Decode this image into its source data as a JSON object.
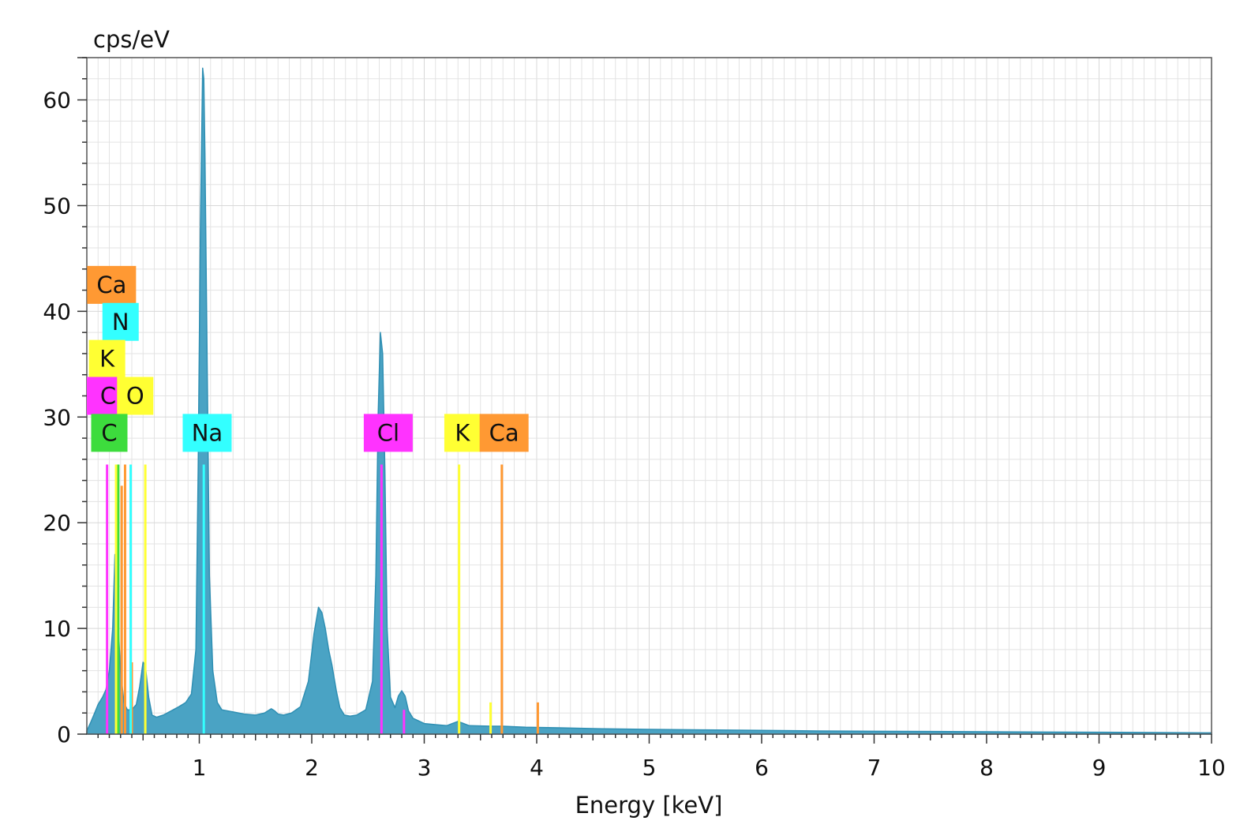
{
  "chart_data": {
    "type": "area",
    "title": "",
    "xlabel": "Energy [keV]",
    "ylabel": "cps/eV",
    "xlim": [
      0.0,
      10.0
    ],
    "ylim": [
      0,
      64
    ],
    "x_ticks": [
      1,
      2,
      3,
      4,
      5,
      6,
      7,
      8,
      9,
      10
    ],
    "y_ticks": [
      0,
      10,
      20,
      30,
      40,
      50,
      60
    ],
    "grid": true,
    "colors": {
      "spectrum_fill": "#4aa3c4",
      "spectrum_line": "#2f8fb3",
      "grid": "#e3e3e3",
      "C": "#3ddc3d",
      "Cl": "#ff33ff",
      "K": "#ffff33",
      "Ca": "#ff9933",
      "N": "#33ffff",
      "O": "#ffff33",
      "Na": "#33ffff"
    },
    "series": [
      {
        "x": [
          0.0,
          0.03,
          0.07,
          0.1,
          0.14,
          0.17,
          0.2,
          0.23,
          0.25,
          0.27,
          0.3,
          0.33,
          0.36,
          0.4,
          0.44,
          0.47,
          0.5,
          0.52,
          0.55,
          0.58,
          0.62,
          0.68,
          0.75,
          0.82,
          0.88,
          0.93,
          0.97,
          0.99,
          1.01,
          1.03,
          1.04,
          1.05,
          1.07,
          1.09,
          1.12,
          1.16,
          1.2,
          1.3,
          1.4,
          1.5,
          1.58,
          1.64,
          1.67,
          1.7,
          1.75,
          1.82,
          1.9,
          1.97,
          2.02,
          2.06,
          2.09,
          2.12,
          2.15,
          2.18,
          2.22,
          2.25,
          2.29,
          2.34,
          2.4,
          2.48,
          2.54,
          2.57,
          2.59,
          2.61,
          2.63,
          2.65,
          2.67,
          2.7,
          2.74,
          2.77,
          2.8,
          2.83,
          2.86,
          2.9,
          3.0,
          3.1,
          3.2,
          3.25,
          3.3,
          3.35,
          3.4,
          3.6,
          3.7,
          3.9,
          4.2,
          4.6,
          5.0,
          5.5,
          6.0,
          6.5,
          7.0,
          7.5,
          8.0,
          8.5,
          9.0,
          9.5,
          10.0
        ],
        "y": [
          0.3,
          1.0,
          2.0,
          2.8,
          3.5,
          4.2,
          6.0,
          10.0,
          17.0,
          12.0,
          6.0,
          3.0,
          2.3,
          2.3,
          2.8,
          4.5,
          6.8,
          6.5,
          3.5,
          1.8,
          1.6,
          1.8,
          2.2,
          2.6,
          3.0,
          3.8,
          8.0,
          25.0,
          48.0,
          63.0,
          62.0,
          55.0,
          35.0,
          15.0,
          6.0,
          3.0,
          2.3,
          2.1,
          1.9,
          1.8,
          2.0,
          2.4,
          2.2,
          1.9,
          1.8,
          2.0,
          2.6,
          5.0,
          9.5,
          12.0,
          11.5,
          10.0,
          8.0,
          6.5,
          4.0,
          2.5,
          1.8,
          1.7,
          1.8,
          2.3,
          5.0,
          15.0,
          30.0,
          38.0,
          36.0,
          25.0,
          10.0,
          3.5,
          2.5,
          3.6,
          4.1,
          3.6,
          2.2,
          1.5,
          1.0,
          0.9,
          0.8,
          1.0,
          1.2,
          1.0,
          0.8,
          0.75,
          0.75,
          0.65,
          0.6,
          0.5,
          0.45,
          0.4,
          0.35,
          0.3,
          0.27,
          0.25,
          0.22,
          0.2,
          0.18,
          0.15,
          0.12
        ]
      }
    ],
    "element_markers": [
      {
        "element": "C",
        "lines": [
          {
            "x": 0.28,
            "height": 25.5
          }
        ]
      },
      {
        "element": "Cl",
        "lines": [
          {
            "x": 0.18,
            "height": 25.5
          },
          {
            "x": 2.62,
            "height": 25.5
          },
          {
            "x": 2.82,
            "height": 2.3
          }
        ]
      },
      {
        "element": "K",
        "lines": [
          {
            "x": 0.26,
            "height": 25.5
          },
          {
            "x": 3.31,
            "height": 25.5
          },
          {
            "x": 3.59,
            "height": 3.0
          }
        ]
      },
      {
        "element": "Ca",
        "lines": [
          {
            "x": 0.34,
            "height": 25.5
          },
          {
            "x": 0.31,
            "height": 23.5
          },
          {
            "x": 0.4,
            "height": 6.8
          },
          {
            "x": 3.69,
            "height": 25.5
          },
          {
            "x": 4.01,
            "height": 3.0
          }
        ]
      },
      {
        "element": "N",
        "lines": [
          {
            "x": 0.39,
            "height": 25.5
          }
        ]
      },
      {
        "element": "O",
        "lines": [
          {
            "x": 0.52,
            "height": 25.5
          }
        ]
      },
      {
        "element": "Na",
        "lines": [
          {
            "x": 1.04,
            "height": 25.5
          }
        ]
      }
    ],
    "labels": [
      {
        "text": "Ca",
        "element": "Ca",
        "x": 0.22,
        "y": 42.5
      },
      {
        "text": "N",
        "element": "N",
        "x": 0.3,
        "y": 39.0
      },
      {
        "text": "K",
        "element": "K",
        "x": 0.18,
        "y": 35.5
      },
      {
        "text": "Cl",
        "element": "Cl",
        "x": 0.13,
        "y": 32.0
      },
      {
        "text": "O",
        "element": "O",
        "x": 0.43,
        "y": 32.0
      },
      {
        "text": "C",
        "element": "C",
        "x": 0.2,
        "y": 28.5
      },
      {
        "text": "Na",
        "element": "Na",
        "x": 1.07,
        "y": 28.5
      },
      {
        "text": "Cl",
        "element": "Cl",
        "x": 2.68,
        "y": 28.5
      },
      {
        "text": "K",
        "element": "K",
        "x": 3.34,
        "y": 28.5
      },
      {
        "text": "Ca",
        "element": "Ca",
        "x": 3.71,
        "y": 28.5
      }
    ]
  }
}
